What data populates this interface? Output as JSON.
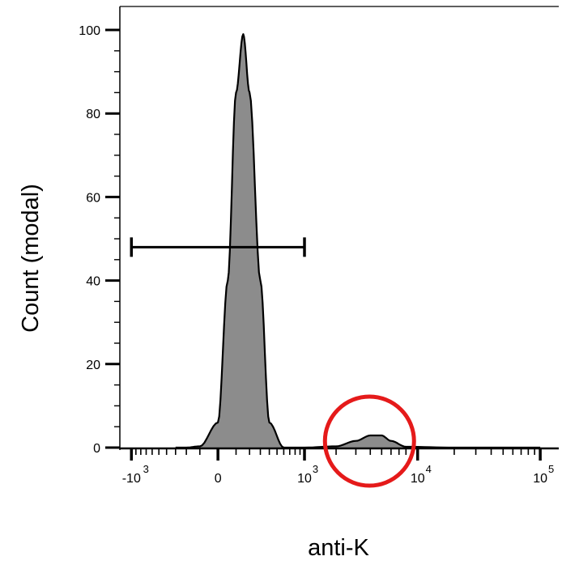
{
  "chart_data": {
    "type": "area",
    "title": "",
    "xlabel": "anti-K",
    "ylabel": "Count (modal)",
    "x_scale": "biexponential",
    "ylim": [
      0,
      100
    ],
    "y_ticks": [
      "0",
      "20",
      "40",
      "60",
      "80",
      "100"
    ],
    "x_ticks": [
      {
        "base": "-10",
        "exp": "3"
      },
      {
        "base": "0",
        "exp": ""
      },
      {
        "base": "10",
        "exp": "3"
      },
      {
        "base": "10",
        "exp": "4"
      },
      {
        "base": "10",
        "exp": "5"
      }
    ],
    "fill_color": "#8c8c8c",
    "line_color": "#000000",
    "series": [
      {
        "x": [
          -300,
          -200,
          -100,
          0,
          50,
          100,
          150,
          200,
          300,
          400,
          600,
          1000,
          2000,
          3000,
          4000,
          5000,
          6000,
          8000,
          20000,
          100000
        ],
        "values": [
          0,
          0,
          0.3,
          6,
          40,
          85,
          99,
          85,
          40,
          6,
          0,
          0,
          0.3,
          1.6,
          2.9,
          2.9,
          1.6,
          0.2,
          0,
          0
        ]
      }
    ],
    "gate": {
      "x_range": [
        -1000,
        1000
      ],
      "y": 48
    },
    "highlight": {
      "x_center": 4000,
      "color": "#e51a1a"
    }
  }
}
